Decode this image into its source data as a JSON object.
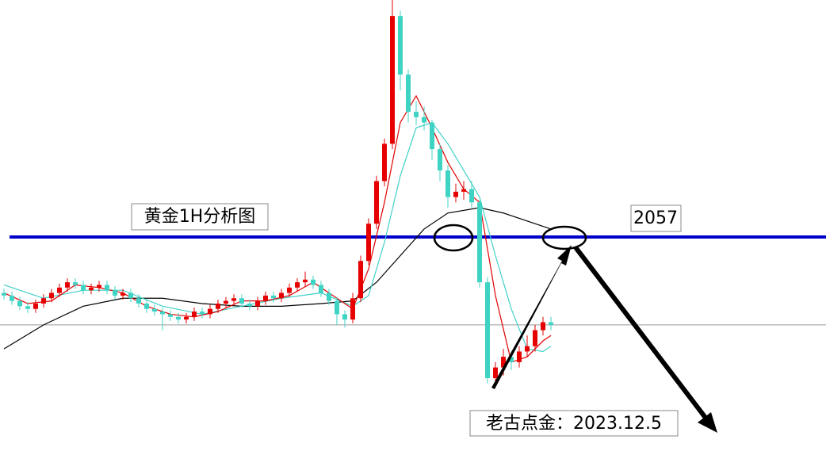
{
  "chart_data": {
    "type": "candlestick",
    "title": "黄金1H分析图",
    "annotation": "老古点金：2023.12.5",
    "ylim": [
      1968,
      2146
    ],
    "up_color": "#e60000",
    "down_color": "#3fd3c4",
    "reference_lines": [
      {
        "value": 2057,
        "color": "#0000c8"
      },
      {
        "value": 2024,
        "color": "#999999"
      }
    ],
    "candles": [
      [
        2036,
        2037.5,
        2033.5,
        2035
      ],
      [
        2035,
        2036.5,
        2031.5,
        2033
      ],
      [
        2033,
        2034.5,
        2029.5,
        2031
      ],
      [
        2031,
        2032.5,
        2028.5,
        2030
      ],
      [
        2030,
        2033.5,
        2028.5,
        2032
      ],
      [
        2032,
        2035.5,
        2030.5,
        2034
      ],
      [
        2034,
        2037.5,
        2032.5,
        2036
      ],
      [
        2036,
        2039.5,
        2034.5,
        2038
      ],
      [
        2038,
        2041.5,
        2036.5,
        2040
      ],
      [
        2040,
        2041.5,
        2037.5,
        2039
      ],
      [
        2039,
        2040.5,
        2035.5,
        2037
      ],
      [
        2037,
        2039.5,
        2035.5,
        2038
      ],
      [
        2038,
        2040.5,
        2036.5,
        2039
      ],
      [
        2039,
        2040.5,
        2035.5,
        2037
      ],
      [
        2037,
        2038.5,
        2033.5,
        2035
      ],
      [
        2035,
        2037.5,
        2033.5,
        2036
      ],
      [
        2036,
        2037.5,
        2032.5,
        2034
      ],
      [
        2034,
        2035.5,
        2030.5,
        2032
      ],
      [
        2032,
        2033.5,
        2028.5,
        2030
      ],
      [
        2030,
        2031.5,
        2027.5,
        2029
      ],
      [
        2029,
        2030.5,
        2022,
        2028
      ],
      [
        2028,
        2029.5,
        2025.5,
        2027
      ],
      [
        2027,
        2028.5,
        2024.5,
        2026
      ],
      [
        2026,
        2028.5,
        2024.5,
        2027
      ],
      [
        2027,
        2030.5,
        2025.5,
        2029
      ],
      [
        2029,
        2030.5,
        2026.5,
        2028
      ],
      [
        2028,
        2031.5,
        2026.5,
        2030
      ],
      [
        2030,
        2033.5,
        2028.5,
        2032
      ],
      [
        2032,
        2034.5,
        2030.5,
        2033
      ],
      [
        2033,
        2035.5,
        2031.5,
        2034
      ],
      [
        2034,
        2035.5,
        2030.5,
        2032
      ],
      [
        2032,
        2033.5,
        2029.5,
        2031
      ],
      [
        2031,
        2034.5,
        2029.5,
        2033
      ],
      [
        2033,
        2036.5,
        2031.5,
        2035
      ],
      [
        2035,
        2036.5,
        2032.5,
        2034
      ],
      [
        2034,
        2037.5,
        2032.5,
        2036
      ],
      [
        2036,
        2039.5,
        2034.5,
        2038
      ],
      [
        2038,
        2041.5,
        2036.5,
        2040
      ],
      [
        2040,
        2044,
        2038.5,
        2041
      ],
      [
        2041,
        2042.5,
        2037.5,
        2039
      ],
      [
        2039,
        2040.5,
        2034.5,
        2036
      ],
      [
        2036,
        2037.5,
        2031.5,
        2033
      ],
      [
        2033,
        2034.5,
        2024,
        2028
      ],
      [
        2028,
        2029.5,
        2023,
        2026
      ],
      [
        2026,
        2036,
        2024.5,
        2034
      ],
      [
        2034,
        2050,
        2032.5,
        2048
      ],
      [
        2048,
        2064,
        2046.5,
        2062
      ],
      [
        2062,
        2080,
        2060,
        2078
      ],
      [
        2078,
        2094,
        2076,
        2092
      ],
      [
        2092,
        2146,
        2090,
        2140
      ],
      [
        2140,
        2142,
        2112,
        2118
      ],
      [
        2118,
        2120,
        2100,
        2104
      ],
      [
        2104,
        2108,
        2099,
        2102
      ],
      [
        2102,
        2106,
        2097,
        2100
      ],
      [
        2100,
        2101,
        2086,
        2090
      ],
      [
        2090,
        2092,
        2078,
        2082
      ],
      [
        2082,
        2084,
        2068,
        2072
      ],
      [
        2072,
        2077,
        2070,
        2074
      ],
      [
        2074,
        2078,
        2071,
        2075
      ],
      [
        2075,
        2078,
        2068,
        2070
      ],
      [
        2070,
        2071,
        2038,
        2040
      ],
      [
        2040,
        2042,
        2002,
        2004
      ],
      [
        2004,
        2010,
        2001,
        2008
      ],
      [
        2008,
        2015,
        2005,
        2012
      ],
      [
        2012,
        2014,
        2007,
        2010
      ],
      [
        2010,
        2016,
        2008,
        2014
      ],
      [
        2014,
        2020,
        2012,
        2016
      ],
      [
        2016,
        2024,
        2014,
        2022
      ],
      [
        2022,
        2027,
        2020,
        2025
      ],
      [
        2025,
        2027,
        2022,
        2024
      ]
    ],
    "series": [
      {
        "color": "#000000",
        "x": [
          0,
          5,
          10,
          15,
          20,
          25,
          30,
          35,
          40,
          44,
          47,
          50,
          53,
          56,
          60,
          63,
          66,
          69
        ],
        "values": [
          2015,
          2024,
          2031,
          2034,
          2034,
          2032,
          2031,
          2031,
          2032,
          2033,
          2040,
          2050,
          2060,
          2066,
          2068,
          2066,
          2063,
          2060
        ]
      },
      {
        "color": "#40d0c8",
        "x": [
          0,
          5,
          10,
          15,
          20,
          25,
          30,
          35,
          40,
          44,
          46,
          48,
          50,
          52,
          54,
          56,
          58,
          60,
          62,
          64,
          66,
          68,
          69
        ],
        "values": [
          2039,
          2034,
          2037,
          2037,
          2031,
          2028,
          2031,
          2034,
          2036,
          2031,
          2035,
          2055,
          2080,
          2098,
          2100,
          2092,
          2082,
          2072,
          2050,
          2030,
          2015,
          2014,
          2016
        ]
      },
      {
        "color": "#e00000",
        "x": [
          0,
          3,
          6,
          9,
          12,
          15,
          18,
          21,
          24,
          27,
          30,
          33,
          36,
          39,
          42,
          44,
          46,
          48,
          50,
          52,
          54,
          56,
          58,
          60,
          62,
          64,
          66,
          68,
          69
        ],
        "values": [
          2036,
          2032,
          2033,
          2039,
          2038,
          2036,
          2031,
          2028,
          2027,
          2029,
          2033,
          2033,
          2035,
          2040,
          2034,
          2030,
          2045,
          2070,
          2100,
          2110,
          2098,
          2085,
          2075,
          2070,
          2035,
          2010,
          2012,
          2018,
          2020
        ]
      }
    ]
  }
}
